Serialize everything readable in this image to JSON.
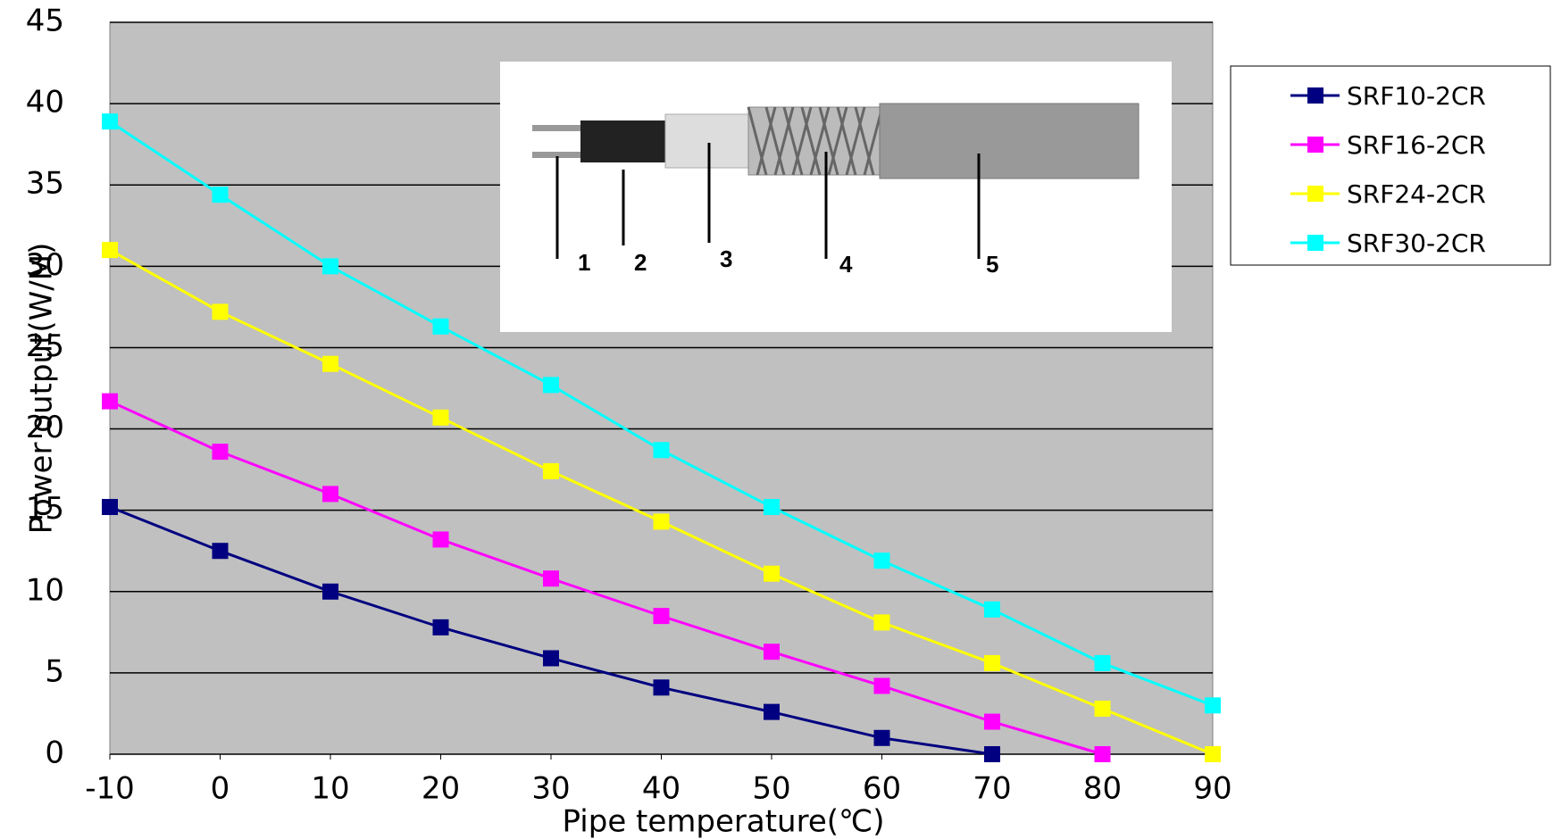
{
  "chart_data": {
    "type": "line",
    "x_label": "Pipe temperature(℃)",
    "y_label": "Power output(W/M)",
    "x": [
      -10,
      0,
      10,
      20,
      30,
      40,
      50,
      60,
      70,
      80,
      90
    ],
    "series": [
      {
        "name": "SRF10-2CR",
        "color": "#000080",
        "values": [
          15.2,
          12.5,
          10,
          7.8,
          5.9,
          4.1,
          2.6,
          1,
          0,
          null,
          null
        ]
      },
      {
        "name": "SRF16-2CR",
        "color": "#ff00ff",
        "values": [
          21.7,
          18.6,
          16,
          13.2,
          10.8,
          8.5,
          6.3,
          4.2,
          2,
          0,
          null
        ]
      },
      {
        "name": "SRF24-2CR",
        "color": "#ffff00",
        "values": [
          31,
          27.2,
          24,
          20.7,
          17.4,
          14.3,
          11.1,
          8.1,
          5.6,
          2.8,
          0
        ]
      },
      {
        "name": "SRF30-2CR",
        "color": "#00ffff",
        "values": [
          38.9,
          34.4,
          30,
          26.3,
          22.7,
          18.7,
          15.2,
          11.9,
          8.9,
          5.6,
          3
        ]
      }
    ],
    "xlim": [
      -10,
      90
    ],
    "xticks": [
      -10,
      0,
      10,
      20,
      30,
      40,
      50,
      60,
      70,
      80,
      90
    ],
    "ylim": [
      0,
      45
    ],
    "yticks": [
      0,
      5,
      10,
      15,
      20,
      25,
      30,
      35,
      40,
      45
    ],
    "grid": true,
    "legend": "right"
  },
  "inset": {
    "labels": [
      "1",
      "2",
      "3",
      "4",
      "5"
    ]
  }
}
